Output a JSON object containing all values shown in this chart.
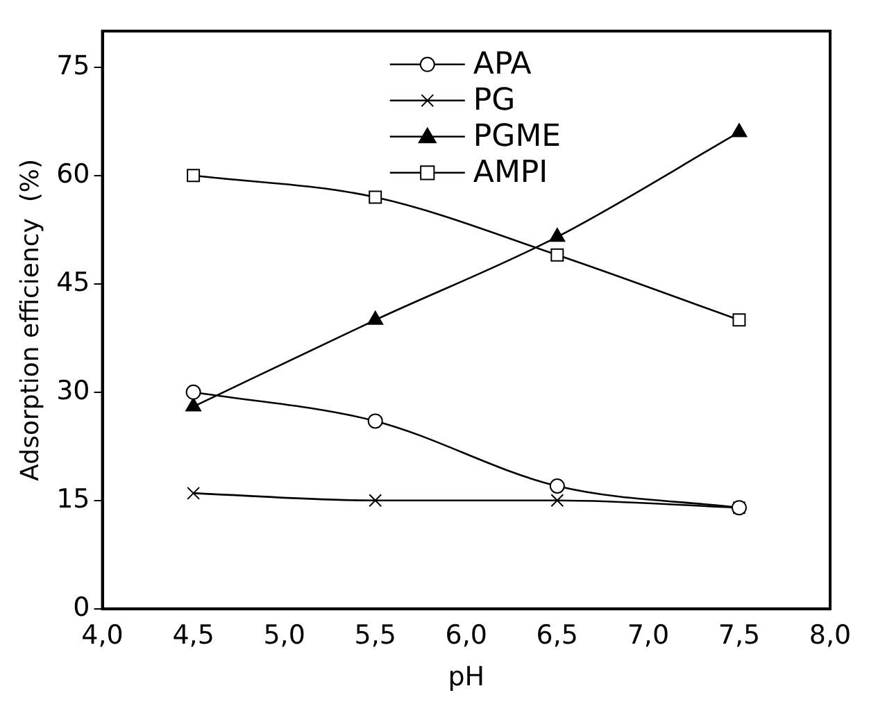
{
  "chart_data": {
    "type": "line",
    "xlabel": "pH",
    "ylabel": "Adsorption efficiency  (%)",
    "x": [
      4.5,
      5.5,
      6.5,
      7.5
    ],
    "series": [
      {
        "name": "APA",
        "color": "#000000",
        "marker": "circle",
        "values": [
          30,
          26,
          17,
          14
        ]
      },
      {
        "name": "PG",
        "color": "#000000",
        "marker": "cross",
        "values": [
          16,
          15,
          15,
          14
        ]
      },
      {
        "name": "PGME",
        "color": "#000000",
        "marker": "triangle",
        "values": [
          28,
          40,
          51.5,
          66
        ]
      },
      {
        "name": "AMPI",
        "color": "#000000",
        "marker": "square",
        "values": [
          60,
          57,
          49,
          40
        ]
      }
    ],
    "xlim": [
      4,
      8
    ],
    "xticks": [
      {
        "value": 4,
        "label": "4,0"
      },
      {
        "value": 4.5,
        "label": "4,5"
      },
      {
        "value": 5,
        "label": "5,0"
      },
      {
        "value": 5.5,
        "label": "5,5"
      },
      {
        "value": 6,
        "label": "6,0"
      },
      {
        "value": 6.5,
        "label": "6,5"
      },
      {
        "value": 7,
        "label": "7,0"
      },
      {
        "value": 7.5,
        "label": "7,5"
      },
      {
        "value": 8,
        "label": "8,0"
      }
    ],
    "ylim": [
      0,
      80
    ],
    "yticks": [
      0,
      15,
      30,
      45,
      60,
      75
    ],
    "grid": false,
    "legend": "top",
    "line_style": "solid"
  }
}
